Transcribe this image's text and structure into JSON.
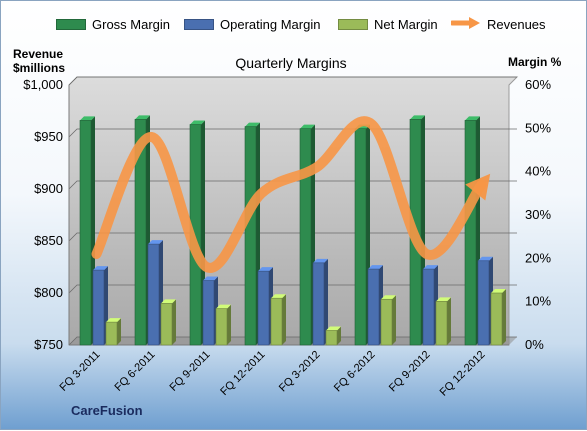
{
  "title": "Quarterly Margins",
  "legend": {
    "gross": "Gross Margin",
    "operating": "Operating Margin",
    "net": "Net Margin",
    "revenues": "Revenues"
  },
  "axis": {
    "left_title_line1": "Revenue",
    "left_title_line2": "$millions",
    "right_title": "Margin %"
  },
  "footer": "CareFusion",
  "colors": {
    "gross": "#2e8b4e",
    "operating": "#4a6fb0",
    "net": "#9bbb59",
    "revenues": "#f79646"
  },
  "chart_data": {
    "type": "bar",
    "title": "Quarterly Margins",
    "categories": [
      "FQ 3-2011",
      "FQ 6-2011",
      "FQ 9-2011",
      "FQ 12-2011",
      "FQ 3-2012",
      "FQ 6-2012",
      "FQ 9-2012",
      "FQ 12-2012"
    ],
    "series": [
      {
        "name": "Gross Margin",
        "axis": "left",
        "values": [
          966,
          967,
          962,
          960,
          958,
          958,
          967,
          966
        ]
      },
      {
        "name": "Operating Margin",
        "axis": "left",
        "values": [
          822,
          847,
          812,
          821,
          829,
          823,
          823,
          831
        ]
      },
      {
        "name": "Net Margin",
        "axis": "left",
        "values": [
          772,
          790,
          785,
          795,
          764,
          794,
          792,
          800
        ]
      },
      {
        "name": "Revenues",
        "type": "line",
        "axis": "right",
        "values": [
          21,
          48,
          18,
          35,
          41,
          51,
          21,
          37
        ]
      }
    ],
    "y_left": {
      "label": "Revenue $millions",
      "range": [
        750,
        1000
      ],
      "ticks": [
        "$750",
        "$800",
        "$850",
        "$900",
        "$950",
        "$1,000"
      ]
    },
    "y_right": {
      "label": "Margin %",
      "range": [
        0,
        60
      ],
      "ticks": [
        "0%",
        "10%",
        "20%",
        "30%",
        "40%",
        "50%",
        "60%"
      ]
    },
    "grid": true,
    "legend_position": "top"
  }
}
